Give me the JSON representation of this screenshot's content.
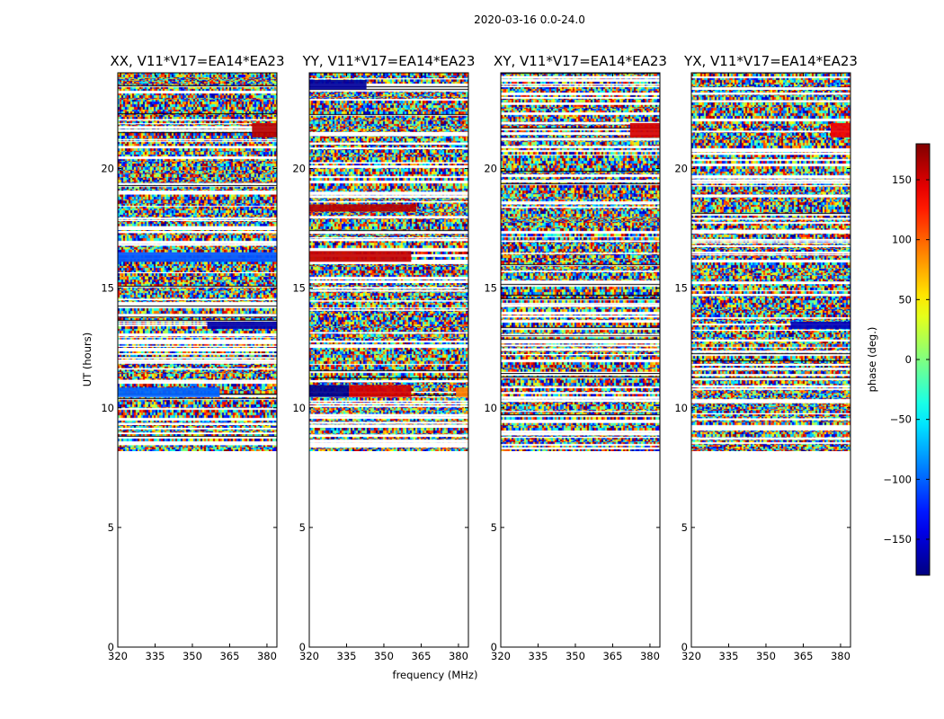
{
  "figure": {
    "suptitle": "2020-03-16 0.0-24.0"
  },
  "chart_data": {
    "type": "heatmap",
    "ylabel": "UT (hours)",
    "xlabel": "frequency (MHz)",
    "xlim": [
      320,
      384
    ],
    "ylim": [
      0,
      24
    ],
    "xticks": [
      320,
      335,
      350,
      365,
      380
    ],
    "yticks": [
      0,
      5,
      10,
      15,
      20
    ],
    "data_start_hour": 8.2,
    "colorbar": {
      "label": "phase (deg.)",
      "range": [
        -180,
        180
      ],
      "ticks": [
        -150,
        -100,
        -50,
        0,
        50,
        100,
        150
      ],
      "colormap": "jet"
    },
    "panels": [
      {
        "title": "XX, V11*V17=EA14*EA23",
        "features": [
          {
            "y": [
              10.45,
              10.85
            ],
            "x": [
              320,
              361
            ],
            "phase": -100
          },
          {
            "y": [
              16.1,
              16.5
            ],
            "x": [
              320,
              384
            ],
            "phase": -105
          },
          {
            "y": [
              13.3,
              13.6
            ],
            "x": [
              356,
              384
            ],
            "phase": -165
          },
          {
            "y": [
              21.3,
              21.9
            ],
            "x": [
              374,
              384
            ],
            "phase": 160
          }
        ]
      },
      {
        "title": "YY, V11*V17=EA14*EA23",
        "features": [
          {
            "y": [
              10.45,
              10.95
            ],
            "x": [
              320,
              336
            ],
            "phase": -175
          },
          {
            "y": [
              10.45,
              10.95
            ],
            "x": [
              336,
              361
            ],
            "phase": 150
          },
          {
            "y": [
              10.45,
              10.85
            ],
            "x": [
              379,
              384
            ],
            "phase": 90
          },
          {
            "y": [
              16.1,
              16.55
            ],
            "x": [
              320,
              361
            ],
            "phase": 155
          },
          {
            "y": [
              18.2,
              18.5
            ],
            "x": [
              320,
              363
            ],
            "phase": 160
          },
          {
            "y": [
              23.3,
              23.7
            ],
            "x": [
              320,
              343
            ],
            "phase": -170
          }
        ]
      },
      {
        "title": "XY, V11*V17=EA14*EA23",
        "features": [
          {
            "y": [
              21.3,
              21.9
            ],
            "x": [
              372,
              384
            ],
            "phase": 150
          }
        ]
      },
      {
        "title": "YX, V11*V17=EA14*EA23",
        "features": [
          {
            "y": [
              13.3,
              13.6
            ],
            "x": [
              360,
              384
            ],
            "phase": -160
          },
          {
            "y": [
              21.3,
              21.9
            ],
            "x": [
              376,
              384
            ],
            "phase": 140
          }
        ]
      }
    ]
  }
}
